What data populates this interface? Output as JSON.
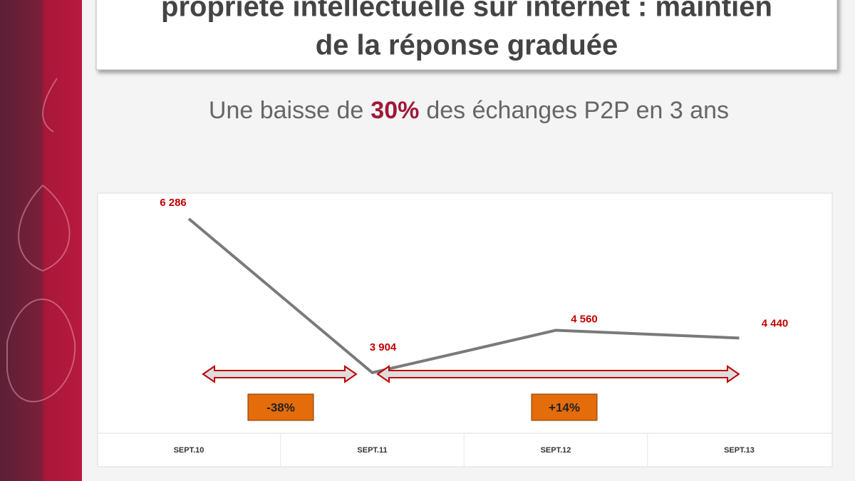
{
  "chart_data": {
    "type": "line",
    "title_lines": [
      "propriété intellectuelle sur internet : maintien",
      "de la réponse graduée"
    ],
    "subtitle_parts": [
      "Une baisse de",
      "30%",
      "des échanges P2P en 3 ans"
    ],
    "categories": [
      "SEPT.10",
      "SEPT.11",
      "SEPT.12",
      "SEPT.13"
    ],
    "series": [
      {
        "color": "#7a7a7a",
        "values": [
          6286,
          3904,
          4560,
          4440
        ],
        "value_labels": [
          "6 286",
          "3 904",
          "4 560",
          "4 440"
        ]
      }
    ],
    "annotations": [
      "-38%",
      "+14%"
    ]
  }
}
